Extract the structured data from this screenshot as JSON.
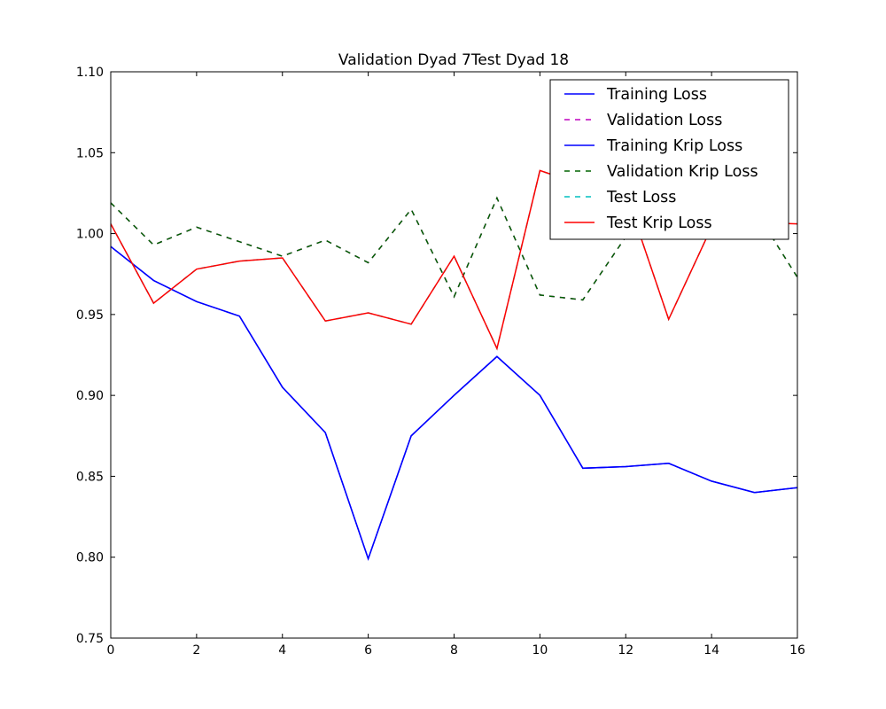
{
  "chart_data": {
    "type": "line",
    "title": "Validation Dyad 7\u001fTest Dyad 18",
    "xlabel": "",
    "ylabel": "",
    "xlim": [
      0,
      16
    ],
    "ylim": [
      0.75,
      1.1
    ],
    "xticks": [
      0,
      2,
      4,
      6,
      8,
      10,
      12,
      14,
      16
    ],
    "yticks": [
      0.75,
      0.8,
      0.85,
      0.9,
      0.95,
      1.0,
      1.05,
      1.1
    ],
    "ytick_labels": [
      "0.75",
      "0.80",
      "0.85",
      "0.90",
      "0.95",
      "1.00",
      "1.05",
      "1.10"
    ],
    "grid": false,
    "legend_position": "top-right",
    "x": [
      0,
      1,
      2,
      3,
      4,
      5,
      6,
      7,
      8,
      9,
      10,
      11,
      12,
      13,
      14,
      15,
      16
    ],
    "series": [
      {
        "name": "Training Loss",
        "color": "#0000ff",
        "style": "solid",
        "values": [
          0.992,
          0.971,
          0.958,
          0.949,
          0.905,
          0.877,
          0.799,
          0.875,
          0.9,
          0.924,
          0.9,
          0.855,
          0.856,
          0.858,
          0.847,
          0.84,
          0.843
        ]
      },
      {
        "name": "Validation Loss",
        "color": "#bf00bf",
        "style": "dashed",
        "values": [
          1.019,
          0.993,
          1.004,
          0.995,
          0.986,
          0.996,
          0.982,
          1.015,
          0.961,
          1.022,
          0.962,
          0.959,
          0.998,
          1.01,
          1.008,
          1.015,
          0.973
        ]
      },
      {
        "name": "Training Krip Loss",
        "color": "#0000ff",
        "style": "solid",
        "values": [
          0.992,
          0.971,
          0.958,
          0.949,
          0.905,
          0.877,
          0.799,
          0.875,
          0.9,
          0.924,
          0.9,
          0.855,
          0.856,
          0.858,
          0.847,
          0.84,
          0.843
        ]
      },
      {
        "name": "Validation Krip Loss",
        "color": "#006400",
        "style": "dashed",
        "values": [
          1.019,
          0.993,
          1.004,
          0.995,
          0.986,
          0.996,
          0.982,
          1.015,
          0.961,
          1.022,
          0.962,
          0.959,
          0.998,
          1.01,
          1.008,
          1.015,
          0.973
        ]
      },
      {
        "name": "Test Loss",
        "color": "#00bfbf",
        "style": "dashed",
        "values": [
          1.006,
          0.957,
          0.978,
          0.983,
          0.985,
          0.946,
          0.951,
          0.944,
          0.986,
          0.929,
          1.039,
          1.03,
          1.025,
          0.947,
          1.004,
          1.007,
          1.006
        ]
      },
      {
        "name": "Test Krip Loss",
        "color": "#ff0000",
        "style": "solid",
        "values": [
          1.006,
          0.957,
          0.978,
          0.983,
          0.985,
          0.946,
          0.951,
          0.944,
          0.986,
          0.929,
          1.039,
          1.03,
          1.025,
          0.947,
          1.004,
          1.007,
          1.006
        ]
      }
    ]
  }
}
